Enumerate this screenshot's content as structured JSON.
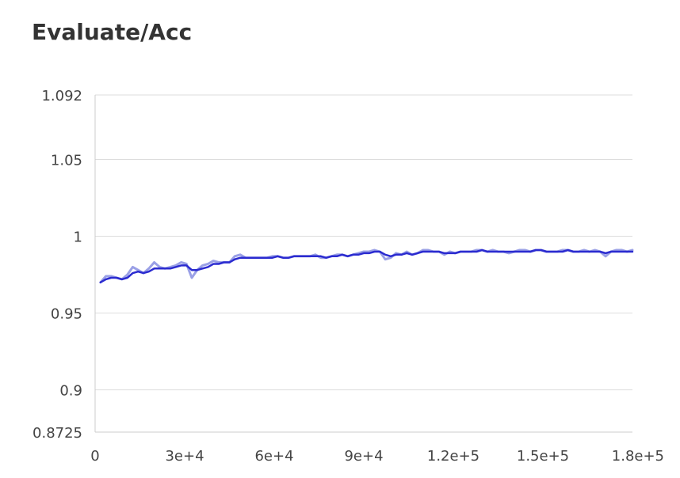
{
  "chart_data": {
    "type": "line",
    "title": "Evaluate/Acc",
    "xlabel": "",
    "ylabel": "",
    "xlim": [
      0,
      180000
    ],
    "ylim": [
      0.8725,
      1.092
    ],
    "x_tick_labels": [
      {
        "value": 0,
        "label": "0"
      },
      {
        "value": 30000,
        "label": "3e+4"
      },
      {
        "value": 60000,
        "label": "6e+4"
      },
      {
        "value": 90000,
        "label": "9e+4"
      },
      {
        "value": 120000,
        "label": "1.2e+5"
      },
      {
        "value": 150000,
        "label": "1.5e+5"
      },
      {
        "value": 180000,
        "label": "1.8e+5"
      }
    ],
    "y_tick_labels": [
      {
        "value": 1.092,
        "label": "1.092"
      },
      {
        "value": 1.05,
        "label": "1.05"
      },
      {
        "value": 1,
        "label": "1"
      },
      {
        "value": 0.95,
        "label": "0.95"
      },
      {
        "value": 0.9,
        "label": "0.9"
      },
      {
        "value": 0.8725,
        "label": "0.8725"
      }
    ],
    "grid": true,
    "colors": {
      "raw": "#9aa0e6",
      "smoothed": "#2b2bd0",
      "grid": "#dddddd",
      "axis": "#cccccc"
    },
    "series": [
      {
        "x": [
          1800,
          3600,
          5400,
          7200,
          9000,
          10800,
          12600,
          14400,
          16200,
          18000,
          19800,
          21600,
          23400,
          25200,
          27000,
          28800,
          30600,
          32400,
          34200,
          36000,
          37800,
          39600,
          41400,
          43200,
          45000,
          46800,
          48600,
          50400,
          52200,
          54000,
          55800,
          57600,
          59400,
          61200,
          63000,
          64800,
          66600,
          68400,
          70200,
          72000,
          73800,
          75600,
          77400,
          79200,
          81000,
          82800,
          84600,
          86400,
          88200,
          90000,
          91800,
          93600,
          95400,
          97200,
          99000,
          100800,
          102600,
          104400,
          106200,
          108000,
          109800,
          111600,
          113400,
          115200,
          117000,
          118800,
          120600,
          122400,
          124200,
          126000,
          127800,
          129600,
          131400,
          133200,
          135000,
          136800,
          138600,
          140400,
          142200,
          144000,
          145800,
          147600,
          149400,
          151200,
          153000,
          154800,
          156600,
          158400,
          160200,
          162000,
          163800,
          165600,
          167400,
          169200,
          171000,
          172800,
          174600,
          176400,
          178200,
          180000
        ],
        "values": [
          0.97,
          0.974,
          0.974,
          0.973,
          0.972,
          0.975,
          0.98,
          0.978,
          0.976,
          0.979,
          0.983,
          0.98,
          0.979,
          0.98,
          0.981,
          0.983,
          0.982,
          0.973,
          0.978,
          0.981,
          0.982,
          0.984,
          0.983,
          0.983,
          0.983,
          0.987,
          0.988,
          0.986,
          0.986,
          0.986,
          0.986,
          0.986,
          0.987,
          0.987,
          0.986,
          0.986,
          0.987,
          0.987,
          0.987,
          0.987,
          0.988,
          0.986,
          0.986,
          0.987,
          0.988,
          0.988,
          0.987,
          0.988,
          0.989,
          0.99,
          0.99,
          0.991,
          0.99,
          0.985,
          0.986,
          0.989,
          0.988,
          0.99,
          0.988,
          0.989,
          0.991,
          0.991,
          0.99,
          0.99,
          0.988,
          0.99,
          0.989,
          0.99,
          0.99,
          0.99,
          0.991,
          0.991,
          0.99,
          0.991,
          0.99,
          0.99,
          0.989,
          0.99,
          0.991,
          0.991,
          0.99,
          0.991,
          0.991,
          0.99,
          0.99,
          0.99,
          0.991,
          0.991,
          0.99,
          0.99,
          0.991,
          0.99,
          0.991,
          0.99,
          0.987,
          0.99,
          0.991,
          0.991,
          0.99,
          0.991
        ]
      },
      {
        "x": [
          1800,
          3600,
          5400,
          7200,
          9000,
          10800,
          12600,
          14400,
          16200,
          18000,
          19800,
          21600,
          23400,
          25200,
          27000,
          28800,
          30600,
          32400,
          34200,
          36000,
          37800,
          39600,
          41400,
          43200,
          45000,
          46800,
          48600,
          50400,
          52200,
          54000,
          55800,
          57600,
          59400,
          61200,
          63000,
          64800,
          66600,
          68400,
          70200,
          72000,
          73800,
          75600,
          77400,
          79200,
          81000,
          82800,
          84600,
          86400,
          88200,
          90000,
          91800,
          93600,
          95400,
          97200,
          99000,
          100800,
          102600,
          104400,
          106200,
          108000,
          109800,
          111600,
          113400,
          115200,
          117000,
          118800,
          120600,
          122400,
          124200,
          126000,
          127800,
          129600,
          131400,
          133200,
          135000,
          136800,
          138600,
          140400,
          142200,
          144000,
          145800,
          147600,
          149400,
          151200,
          153000,
          154800,
          156600,
          158400,
          160200,
          162000,
          163800,
          165600,
          167400,
          169200,
          171000,
          172800,
          174600,
          176400,
          178200,
          180000
        ],
        "values": [
          0.97,
          0.972,
          0.973,
          0.973,
          0.972,
          0.973,
          0.976,
          0.977,
          0.976,
          0.977,
          0.979,
          0.979,
          0.979,
          0.979,
          0.98,
          0.981,
          0.981,
          0.978,
          0.978,
          0.979,
          0.98,
          0.982,
          0.982,
          0.983,
          0.983,
          0.985,
          0.986,
          0.986,
          0.986,
          0.986,
          0.986,
          0.986,
          0.986,
          0.987,
          0.986,
          0.986,
          0.987,
          0.987,
          0.987,
          0.987,
          0.987,
          0.987,
          0.986,
          0.987,
          0.987,
          0.988,
          0.987,
          0.988,
          0.988,
          0.989,
          0.989,
          0.99,
          0.99,
          0.988,
          0.987,
          0.988,
          0.988,
          0.989,
          0.988,
          0.989,
          0.99,
          0.99,
          0.99,
          0.99,
          0.989,
          0.989,
          0.989,
          0.99,
          0.99,
          0.99,
          0.99,
          0.991,
          0.99,
          0.99,
          0.99,
          0.99,
          0.99,
          0.99,
          0.99,
          0.99,
          0.99,
          0.991,
          0.991,
          0.99,
          0.99,
          0.99,
          0.99,
          0.991,
          0.99,
          0.99,
          0.99,
          0.99,
          0.99,
          0.99,
          0.989,
          0.99,
          0.99,
          0.99,
          0.99,
          0.99
        ]
      }
    ]
  }
}
